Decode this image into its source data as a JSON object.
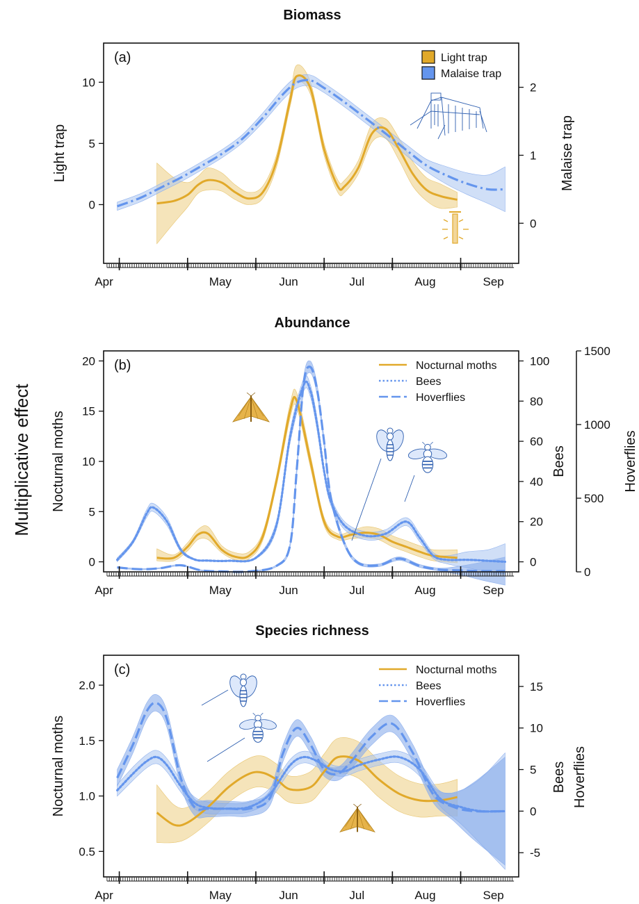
{
  "figure": {
    "shared_ylabel": "Multiplicative effect"
  },
  "colors": {
    "light_trap": "#E1A92A",
    "malaise": "#6495ED",
    "band_light": "#F0D595",
    "band_blue": "#A9C4F1",
    "band_blue_dark": "#7FA5EA"
  },
  "icons": {
    "malaise_trap": "malaise-trap-icon",
    "light_trap": "light-trap-icon",
    "moth": "moth-icon",
    "bee": "bee-icon",
    "hoverfly": "hoverfly-icon"
  },
  "chart_data": [
    {
      "type": "line",
      "title": "Biomass",
      "panel_label": "(a)",
      "x_tick_labels": [
        "Apr",
        "May",
        "Jun",
        "Jul",
        "Aug",
        "Sep"
      ],
      "x_unit": "month",
      "ylabel": "Light trap",
      "y2label": "Malaise trap",
      "y_ticks": [
        0,
        5,
        10
      ],
      "y2_ticks": [
        0,
        1,
        2
      ],
      "ylim": [
        -4.8,
        13.2
      ],
      "y2lim": [
        -0.59,
        2.65
      ],
      "legend": {
        "position": "top-right",
        "entries": [
          "Light trap",
          "Malaise trap"
        ]
      },
      "series": [
        {
          "name": "Light trap",
          "axis": "left",
          "style": "solid",
          "color": "#E1A92A",
          "x": [
            4.55,
            4.8,
            5.0,
            5.15,
            5.3,
            5.5,
            5.7,
            5.9,
            6.1,
            6.3,
            6.5,
            6.6,
            6.8,
            7.0,
            7.2,
            7.3,
            7.5,
            7.7,
            7.9,
            8.1,
            8.3,
            8.5,
            8.7,
            8.95
          ],
          "y": [
            0.1,
            0.3,
            0.8,
            1.6,
            2.0,
            1.8,
            1.0,
            0.5,
            1.0,
            3.5,
            8.5,
            10.5,
            9.5,
            4.5,
            1.5,
            1.5,
            3.0,
            5.8,
            6.2,
            4.5,
            2.5,
            1.2,
            0.7,
            0.4
          ],
          "lower": [
            -3.2,
            -1.5,
            -0.2,
            0.9,
            1.2,
            1.1,
            0.4,
            0.0,
            0.5,
            3.0,
            8.0,
            10.0,
            9.0,
            4.0,
            1.0,
            1.0,
            2.5,
            5.1,
            5.4,
            3.6,
            1.5,
            0.3,
            -0.3,
            -0.2
          ],
          "upper": [
            3.4,
            2.2,
            1.8,
            2.3,
            3.0,
            2.6,
            1.6,
            1.0,
            1.5,
            4.0,
            9.0,
            11.4,
            10.0,
            5.0,
            2.0,
            2.0,
            3.6,
            6.6,
            7.0,
            5.4,
            3.5,
            2.2,
            1.7,
            1.0
          ]
        },
        {
          "name": "Malaise trap",
          "axis": "right",
          "style": "dashdot",
          "color": "#6495ED",
          "x": [
            3.97,
            4.3,
            4.6,
            4.9,
            5.2,
            5.5,
            5.8,
            6.1,
            6.4,
            6.6,
            6.8,
            7.0,
            7.3,
            7.6,
            7.9,
            8.2,
            8.5,
            8.8,
            9.1,
            9.4,
            9.65
          ],
          "y": [
            0.25,
            0.37,
            0.52,
            0.67,
            0.84,
            1.02,
            1.24,
            1.55,
            1.9,
            2.07,
            2.1,
            1.99,
            1.78,
            1.55,
            1.32,
            1.08,
            0.85,
            0.7,
            0.58,
            0.5,
            0.5
          ],
          "lower": [
            0.19,
            0.31,
            0.46,
            0.61,
            0.78,
            0.96,
            1.18,
            1.48,
            1.82,
            1.99,
            2.02,
            1.92,
            1.71,
            1.48,
            1.25,
            1.0,
            0.76,
            0.57,
            0.42,
            0.29,
            0.17
          ],
          "upper": [
            0.31,
            0.43,
            0.58,
            0.73,
            0.9,
            1.08,
            1.3,
            1.62,
            1.98,
            2.15,
            2.18,
            2.06,
            1.85,
            1.62,
            1.39,
            1.16,
            0.94,
            0.83,
            0.74,
            0.71,
            0.83
          ]
        }
      ]
    },
    {
      "type": "line",
      "title": "Abundance",
      "panel_label": "(b)",
      "x_tick_labels": [
        "Apr",
        "May",
        "Jun",
        "Jul",
        "Aug",
        "Sep"
      ],
      "x_unit": "month",
      "ylabel": "Nocturnal moths",
      "y2label": "Bees",
      "y3label": "Hoverflies",
      "y_ticks": [
        0,
        5,
        10,
        15,
        20
      ],
      "y2_ticks": [
        0,
        20,
        40,
        60,
        80,
        100
      ],
      "y3_ticks": [
        0,
        500,
        1000,
        1500
      ],
      "ylim": [
        -1.0,
        21.0
      ],
      "y2lim": [
        -5.0,
        105.0
      ],
      "y3lim": [
        0,
        1500
      ],
      "legend": {
        "position": "top-right",
        "entries": [
          "Nocturnal moths",
          "Bees",
          "Hoverflies"
        ]
      },
      "series": [
        {
          "name": "Nocturnal moths",
          "axis": "left",
          "style": "solid",
          "color": "#E1A92A",
          "x": [
            4.55,
            4.8,
            5.0,
            5.15,
            5.3,
            5.5,
            5.7,
            5.9,
            6.1,
            6.3,
            6.5,
            6.6,
            6.8,
            7.0,
            7.2,
            7.4,
            7.6,
            7.8,
            8.0,
            8.2,
            8.4,
            8.6,
            8.95
          ],
          "y": [
            0.4,
            0.4,
            1.5,
            2.7,
            2.8,
            1.2,
            0.5,
            0.6,
            2.5,
            8.0,
            15.0,
            16.0,
            10.0,
            4.0,
            2.5,
            2.7,
            2.9,
            2.7,
            2.0,
            1.5,
            1.0,
            0.6,
            0.4
          ],
          "lower": [
            0.1,
            0.1,
            1.1,
            2.2,
            2.2,
            0.9,
            0.2,
            0.3,
            2.1,
            7.5,
            14.3,
            15.3,
            9.4,
            3.6,
            2.2,
            2.3,
            2.4,
            2.2,
            1.5,
            1.0,
            0.5,
            0.1,
            -0.1
          ],
          "upper": [
            1.3,
            0.7,
            1.9,
            3.2,
            3.5,
            1.6,
            0.9,
            1.0,
            2.9,
            8.5,
            15.7,
            16.8,
            10.6,
            4.4,
            2.8,
            3.1,
            3.5,
            3.3,
            2.6,
            2.1,
            1.6,
            1.2,
            1.2
          ]
        },
        {
          "name": "Bees",
          "axis": "right",
          "style": "dotted",
          "color": "#6495ED",
          "x": [
            3.97,
            4.2,
            4.4,
            4.5,
            4.7,
            4.9,
            5.1,
            5.3,
            5.6,
            6.0,
            6.3,
            6.5,
            6.7,
            6.8,
            6.9,
            7.0,
            7.1,
            7.3,
            7.6,
            7.9,
            8.2,
            8.4,
            8.6,
            8.8,
            9.1,
            9.4,
            9.65
          ],
          "y": [
            1,
            10,
            24,
            27,
            20,
            6,
            1.2,
            0.6,
            0.5,
            2,
            18,
            62,
            88,
            85,
            68,
            45,
            30,
            18,
            13,
            14,
            20,
            12,
            3,
            1,
            1,
            0.5,
            0
          ],
          "lower": [
            0,
            9,
            22,
            25,
            18,
            5,
            0.8,
            0.3,
            0.2,
            1.5,
            16,
            59,
            85,
            82,
            65,
            43,
            28,
            16,
            11,
            12,
            18,
            10,
            1.5,
            -1,
            -3,
            -5,
            -6
          ],
          "upper": [
            2,
            11,
            26,
            29,
            22,
            7,
            1.6,
            0.9,
            0.8,
            2.5,
            20,
            65,
            91,
            88,
            71,
            47,
            32,
            20,
            15,
            16,
            22,
            14,
            4.5,
            3,
            5,
            6,
            9
          ]
        },
        {
          "name": "Hoverflies",
          "axis": "far-right",
          "style": "dashed",
          "color": "#6495ED",
          "x": [
            3.97,
            4.3,
            4.6,
            4.9,
            5.2,
            5.5,
            5.9,
            6.3,
            6.5,
            6.6,
            6.7,
            6.8,
            6.9,
            7.0,
            7.1,
            7.3,
            7.5,
            7.8,
            8.1,
            8.4,
            8.7,
            9.0,
            9.3,
            9.65
          ],
          "y": [
            30,
            18,
            25,
            45,
            10,
            3,
            3,
            40,
            180,
            700,
            1280,
            1390,
            1230,
            880,
            500,
            190,
            60,
            45,
            90,
            40,
            15,
            10,
            5,
            5
          ],
          "lower": [
            25,
            14,
            21,
            40,
            7,
            1,
            1,
            34,
            165,
            670,
            1240,
            1350,
            1195,
            850,
            475,
            175,
            50,
            36,
            78,
            30,
            5,
            -20,
            -55,
            -90
          ],
          "upper": [
            35,
            22,
            29,
            50,
            13,
            5,
            5,
            46,
            195,
            730,
            1320,
            1430,
            1265,
            910,
            525,
            205,
            70,
            54,
            102,
            50,
            25,
            40,
            65,
            100
          ]
        }
      ]
    },
    {
      "type": "line",
      "title": "Species richness",
      "panel_label": "(c)",
      "x_tick_labels": [
        "Apr",
        "May",
        "Jun",
        "Jul",
        "Aug",
        "Sep"
      ],
      "x_unit": "month",
      "ylabel": "Nocturnal moths",
      "y2label": "Bees Hoverflies",
      "y_ticks": [
        0.5,
        1.0,
        1.5,
        2.0
      ],
      "y2_ticks": [
        -5,
        0,
        5,
        10,
        15
      ],
      "ylim": [
        0.27,
        2.27
      ],
      "y2lim": [
        -7.91,
        18.75
      ],
      "legend": {
        "position": "top-right",
        "entries": [
          "Nocturnal moths",
          "Bees",
          "Hoverflies"
        ]
      },
      "series": [
        {
          "name": "Nocturnal moths",
          "axis": "left",
          "style": "solid",
          "color": "#E1A92A",
          "x": [
            4.55,
            4.8,
            5.0,
            5.3,
            5.6,
            5.9,
            6.1,
            6.3,
            6.5,
            6.8,
            7.0,
            7.2,
            7.5,
            7.8,
            8.1,
            8.4,
            8.7,
            8.95
          ],
          "y": [
            0.85,
            0.74,
            0.76,
            0.9,
            1.08,
            1.2,
            1.21,
            1.15,
            1.06,
            1.08,
            1.22,
            1.35,
            1.32,
            1.15,
            1.02,
            0.96,
            0.96,
            0.99
          ],
          "lower": [
            0.58,
            0.58,
            0.62,
            0.76,
            0.94,
            1.06,
            1.08,
            1.03,
            0.94,
            0.95,
            1.08,
            1.2,
            1.16,
            0.99,
            0.86,
            0.81,
            0.82,
            0.82
          ],
          "upper": [
            1.1,
            0.92,
            0.9,
            1.04,
            1.22,
            1.34,
            1.36,
            1.29,
            1.18,
            1.22,
            1.38,
            1.52,
            1.49,
            1.32,
            1.18,
            1.11,
            1.11,
            1.15
          ]
        },
        {
          "name": "Bees",
          "axis": "right",
          "style": "dotted",
          "color": "#6495ED",
          "x": [
            3.97,
            4.2,
            4.4,
            4.55,
            4.7,
            4.9,
            5.1,
            5.3,
            5.6,
            5.9,
            6.2,
            6.5,
            6.7,
            6.9,
            7.1,
            7.3,
            7.5,
            7.8,
            8.1,
            8.4,
            8.7,
            9.0,
            9.3,
            9.65
          ],
          "y": [
            2.5,
            4.5,
            6.0,
            6.5,
            5.5,
            3.0,
            1.0,
            0.4,
            0.3,
            0.5,
            2.0,
            5.5,
            6.5,
            6.0,
            5.0,
            4.8,
            5.5,
            6.2,
            6.5,
            5.0,
            1.5,
            0.5,
            0.0,
            0.0
          ],
          "lower": [
            1.8,
            3.7,
            5.2,
            5.7,
            4.7,
            2.3,
            0.3,
            -0.3,
            -0.3,
            -0.1,
            1.3,
            4.8,
            5.8,
            5.3,
            4.4,
            4.2,
            4.8,
            5.5,
            5.8,
            4.2,
            0.6,
            -1.5,
            -4.0,
            -7.0
          ],
          "upper": [
            3.2,
            5.3,
            6.8,
            7.3,
            6.3,
            3.7,
            1.7,
            1.1,
            0.9,
            1.1,
            2.7,
            6.2,
            7.2,
            6.7,
            5.6,
            5.4,
            6.2,
            6.9,
            7.2,
            5.8,
            2.4,
            2.5,
            4.0,
            7.0
          ]
        },
        {
          "name": "Hoverflies",
          "axis": "right",
          "style": "dashed",
          "color": "#6495ED",
          "x": [
            3.97,
            4.2,
            4.4,
            4.55,
            4.7,
            4.9,
            5.1,
            5.3,
            5.6,
            5.9,
            6.2,
            6.4,
            6.6,
            6.8,
            7.0,
            7.2,
            7.4,
            7.7,
            8.0,
            8.3,
            8.6,
            8.9,
            9.2,
            9.65
          ],
          "y": [
            4.0,
            8.0,
            12.0,
            13.0,
            11.0,
            4.0,
            0.5,
            0.3,
            0.3,
            0.3,
            1.5,
            7.0,
            10.0,
            8.0,
            5.0,
            4.5,
            6.0,
            9.0,
            10.5,
            7.0,
            2.0,
            0.5,
            0.0,
            0.0
          ],
          "lower": [
            3.0,
            7.0,
            11.0,
            12.0,
            10.0,
            3.0,
            -0.5,
            -0.7,
            -0.6,
            -0.6,
            0.6,
            6.0,
            9.0,
            7.0,
            4.2,
            3.7,
            5.1,
            8.0,
            9.5,
            6.0,
            1.0,
            -1.2,
            -3.5,
            -6.5
          ],
          "upper": [
            5.0,
            9.0,
            13.0,
            14.0,
            12.0,
            5.0,
            1.5,
            1.3,
            1.2,
            1.2,
            2.4,
            8.0,
            11.0,
            9.0,
            5.8,
            5.3,
            6.9,
            10.0,
            11.5,
            8.0,
            3.0,
            2.2,
            3.5,
            6.5
          ]
        }
      ]
    }
  ]
}
